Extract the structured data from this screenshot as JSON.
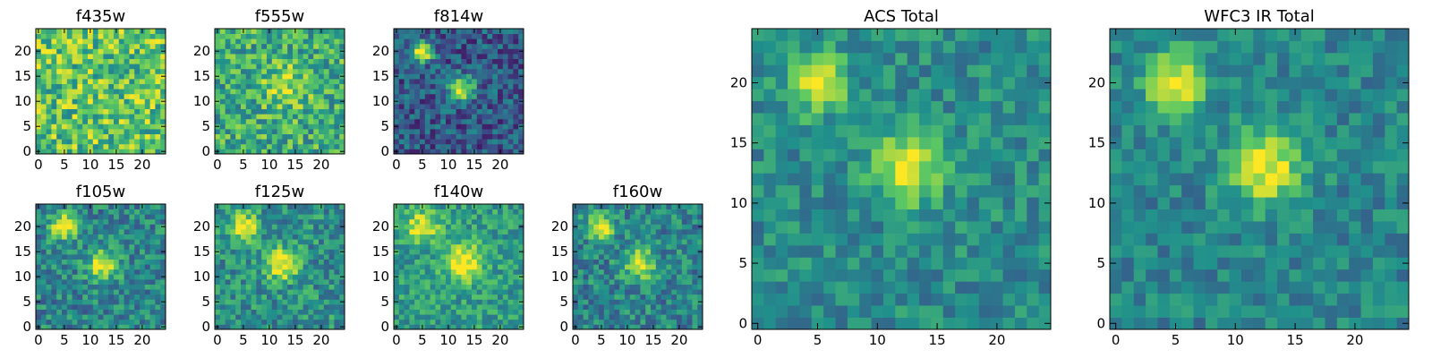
{
  "figure": {
    "colormap": "viridis",
    "colormap_stops": [
      "#440154",
      "#3b528b",
      "#21918c",
      "#5ec962",
      "#fde725"
    ]
  },
  "chart_data": [
    {
      "type": "heatmap",
      "title": "f435w",
      "grid_size": 25,
      "xlim": [
        0,
        24
      ],
      "ylim": [
        0,
        24
      ],
      "xticks": [
        "0",
        "5",
        "10",
        "15",
        "20"
      ],
      "yticks": [
        "0",
        "5",
        "10",
        "15",
        "20"
      ],
      "sources": [],
      "noise": 0.55,
      "background": 0.72,
      "seed": 11
    },
    {
      "type": "heatmap",
      "title": "f555w",
      "grid_size": 25,
      "xlim": [
        0,
        24
      ],
      "ylim": [
        0,
        24
      ],
      "xticks": [
        "0",
        "5",
        "10",
        "15",
        "20"
      ],
      "yticks": [
        "0",
        "5",
        "10",
        "15",
        "20"
      ],
      "sources": [
        {
          "x": 13,
          "y": 13,
          "amp": 0.25,
          "sigma": 3.0
        }
      ],
      "noise": 0.5,
      "background": 0.62,
      "seed": 23
    },
    {
      "type": "heatmap",
      "title": "f814w",
      "grid_size": 25,
      "xlim": [
        0,
        24
      ],
      "ylim": [
        0,
        24
      ],
      "xticks": [
        "0",
        "5",
        "10",
        "15",
        "20"
      ],
      "yticks": [
        "0",
        "5",
        "10",
        "15",
        "20"
      ],
      "sources": [
        {
          "x": 5,
          "y": 20,
          "amp": 0.75,
          "sigma": 1.5
        },
        {
          "x": 12.5,
          "y": 12.5,
          "amp": 0.65,
          "sigma": 1.8
        }
      ],
      "noise": 0.4,
      "background": 0.28,
      "seed": 37
    },
    {
      "type": "heatmap",
      "title": "f105w",
      "grid_size": 25,
      "xlim": [
        0,
        24
      ],
      "ylim": [
        0,
        24
      ],
      "xticks": [
        "0",
        "5",
        "10",
        "15",
        "20"
      ],
      "yticks": [
        "0",
        "5",
        "10",
        "15",
        "20"
      ],
      "sources": [
        {
          "x": 5,
          "y": 20,
          "amp": 0.6,
          "sigma": 1.8
        },
        {
          "x": 12.5,
          "y": 12.5,
          "amp": 0.5,
          "sigma": 2.2
        }
      ],
      "noise": 0.4,
      "background": 0.45,
      "seed": 41
    },
    {
      "type": "heatmap",
      "title": "f125w",
      "grid_size": 25,
      "xlim": [
        0,
        24
      ],
      "ylim": [
        0,
        24
      ],
      "xticks": [
        "0",
        "5",
        "10",
        "15",
        "20"
      ],
      "yticks": [
        "0",
        "5",
        "10",
        "15",
        "20"
      ],
      "sources": [
        {
          "x": 5,
          "y": 20,
          "amp": 0.5,
          "sigma": 2.0
        },
        {
          "x": 12.5,
          "y": 12.5,
          "amp": 0.55,
          "sigma": 2.2
        }
      ],
      "noise": 0.4,
      "background": 0.5,
      "seed": 53
    },
    {
      "type": "heatmap",
      "title": "f140w",
      "grid_size": 25,
      "xlim": [
        0,
        24
      ],
      "ylim": [
        0,
        24
      ],
      "xticks": [
        "0",
        "5",
        "10",
        "15",
        "20"
      ],
      "yticks": [
        "0",
        "5",
        "10",
        "15",
        "20"
      ],
      "sources": [
        {
          "x": 5,
          "y": 20,
          "amp": 0.45,
          "sigma": 2.2
        },
        {
          "x": 13,
          "y": 13,
          "amp": 0.5,
          "sigma": 2.6
        }
      ],
      "noise": 0.35,
      "background": 0.55,
      "seed": 67
    },
    {
      "type": "heatmap",
      "title": "f160w",
      "grid_size": 25,
      "xlim": [
        0,
        24
      ],
      "ylim": [
        0,
        24
      ],
      "xticks": [
        "0",
        "5",
        "10",
        "15",
        "20"
      ],
      "yticks": [
        "0",
        "5",
        "10",
        "15",
        "20"
      ],
      "sources": [
        {
          "x": 5,
          "y": 20,
          "amp": 0.55,
          "sigma": 1.8
        },
        {
          "x": 12.5,
          "y": 12.5,
          "amp": 0.5,
          "sigma": 2.2
        }
      ],
      "noise": 0.4,
      "background": 0.45,
      "seed": 79
    },
    {
      "type": "heatmap",
      "title": "ACS Total",
      "grid_size": 25,
      "xlim": [
        0,
        24
      ],
      "ylim": [
        0,
        24
      ],
      "xticks": [
        "0",
        "5",
        "10",
        "15",
        "20"
      ],
      "yticks": [
        "0",
        "5",
        "10",
        "15",
        "20"
      ],
      "sources": [
        {
          "x": 5,
          "y": 20,
          "amp": 0.6,
          "sigma": 1.6
        },
        {
          "x": 12.5,
          "y": 13,
          "amp": 0.55,
          "sigma": 2.0
        }
      ],
      "noise": 0.3,
      "background": 0.48,
      "seed": 91
    },
    {
      "type": "heatmap",
      "title": "WFC3 IR Total",
      "grid_size": 25,
      "xlim": [
        0,
        24
      ],
      "ylim": [
        0,
        24
      ],
      "xticks": [
        "0",
        "5",
        "10",
        "15",
        "20"
      ],
      "yticks": [
        "0",
        "5",
        "10",
        "15",
        "20"
      ],
      "sources": [
        {
          "x": 5,
          "y": 20,
          "amp": 0.55,
          "sigma": 1.8
        },
        {
          "x": 12.5,
          "y": 13,
          "amp": 0.55,
          "sigma": 2.2
        }
      ],
      "noise": 0.28,
      "background": 0.45,
      "seed": 103
    }
  ]
}
